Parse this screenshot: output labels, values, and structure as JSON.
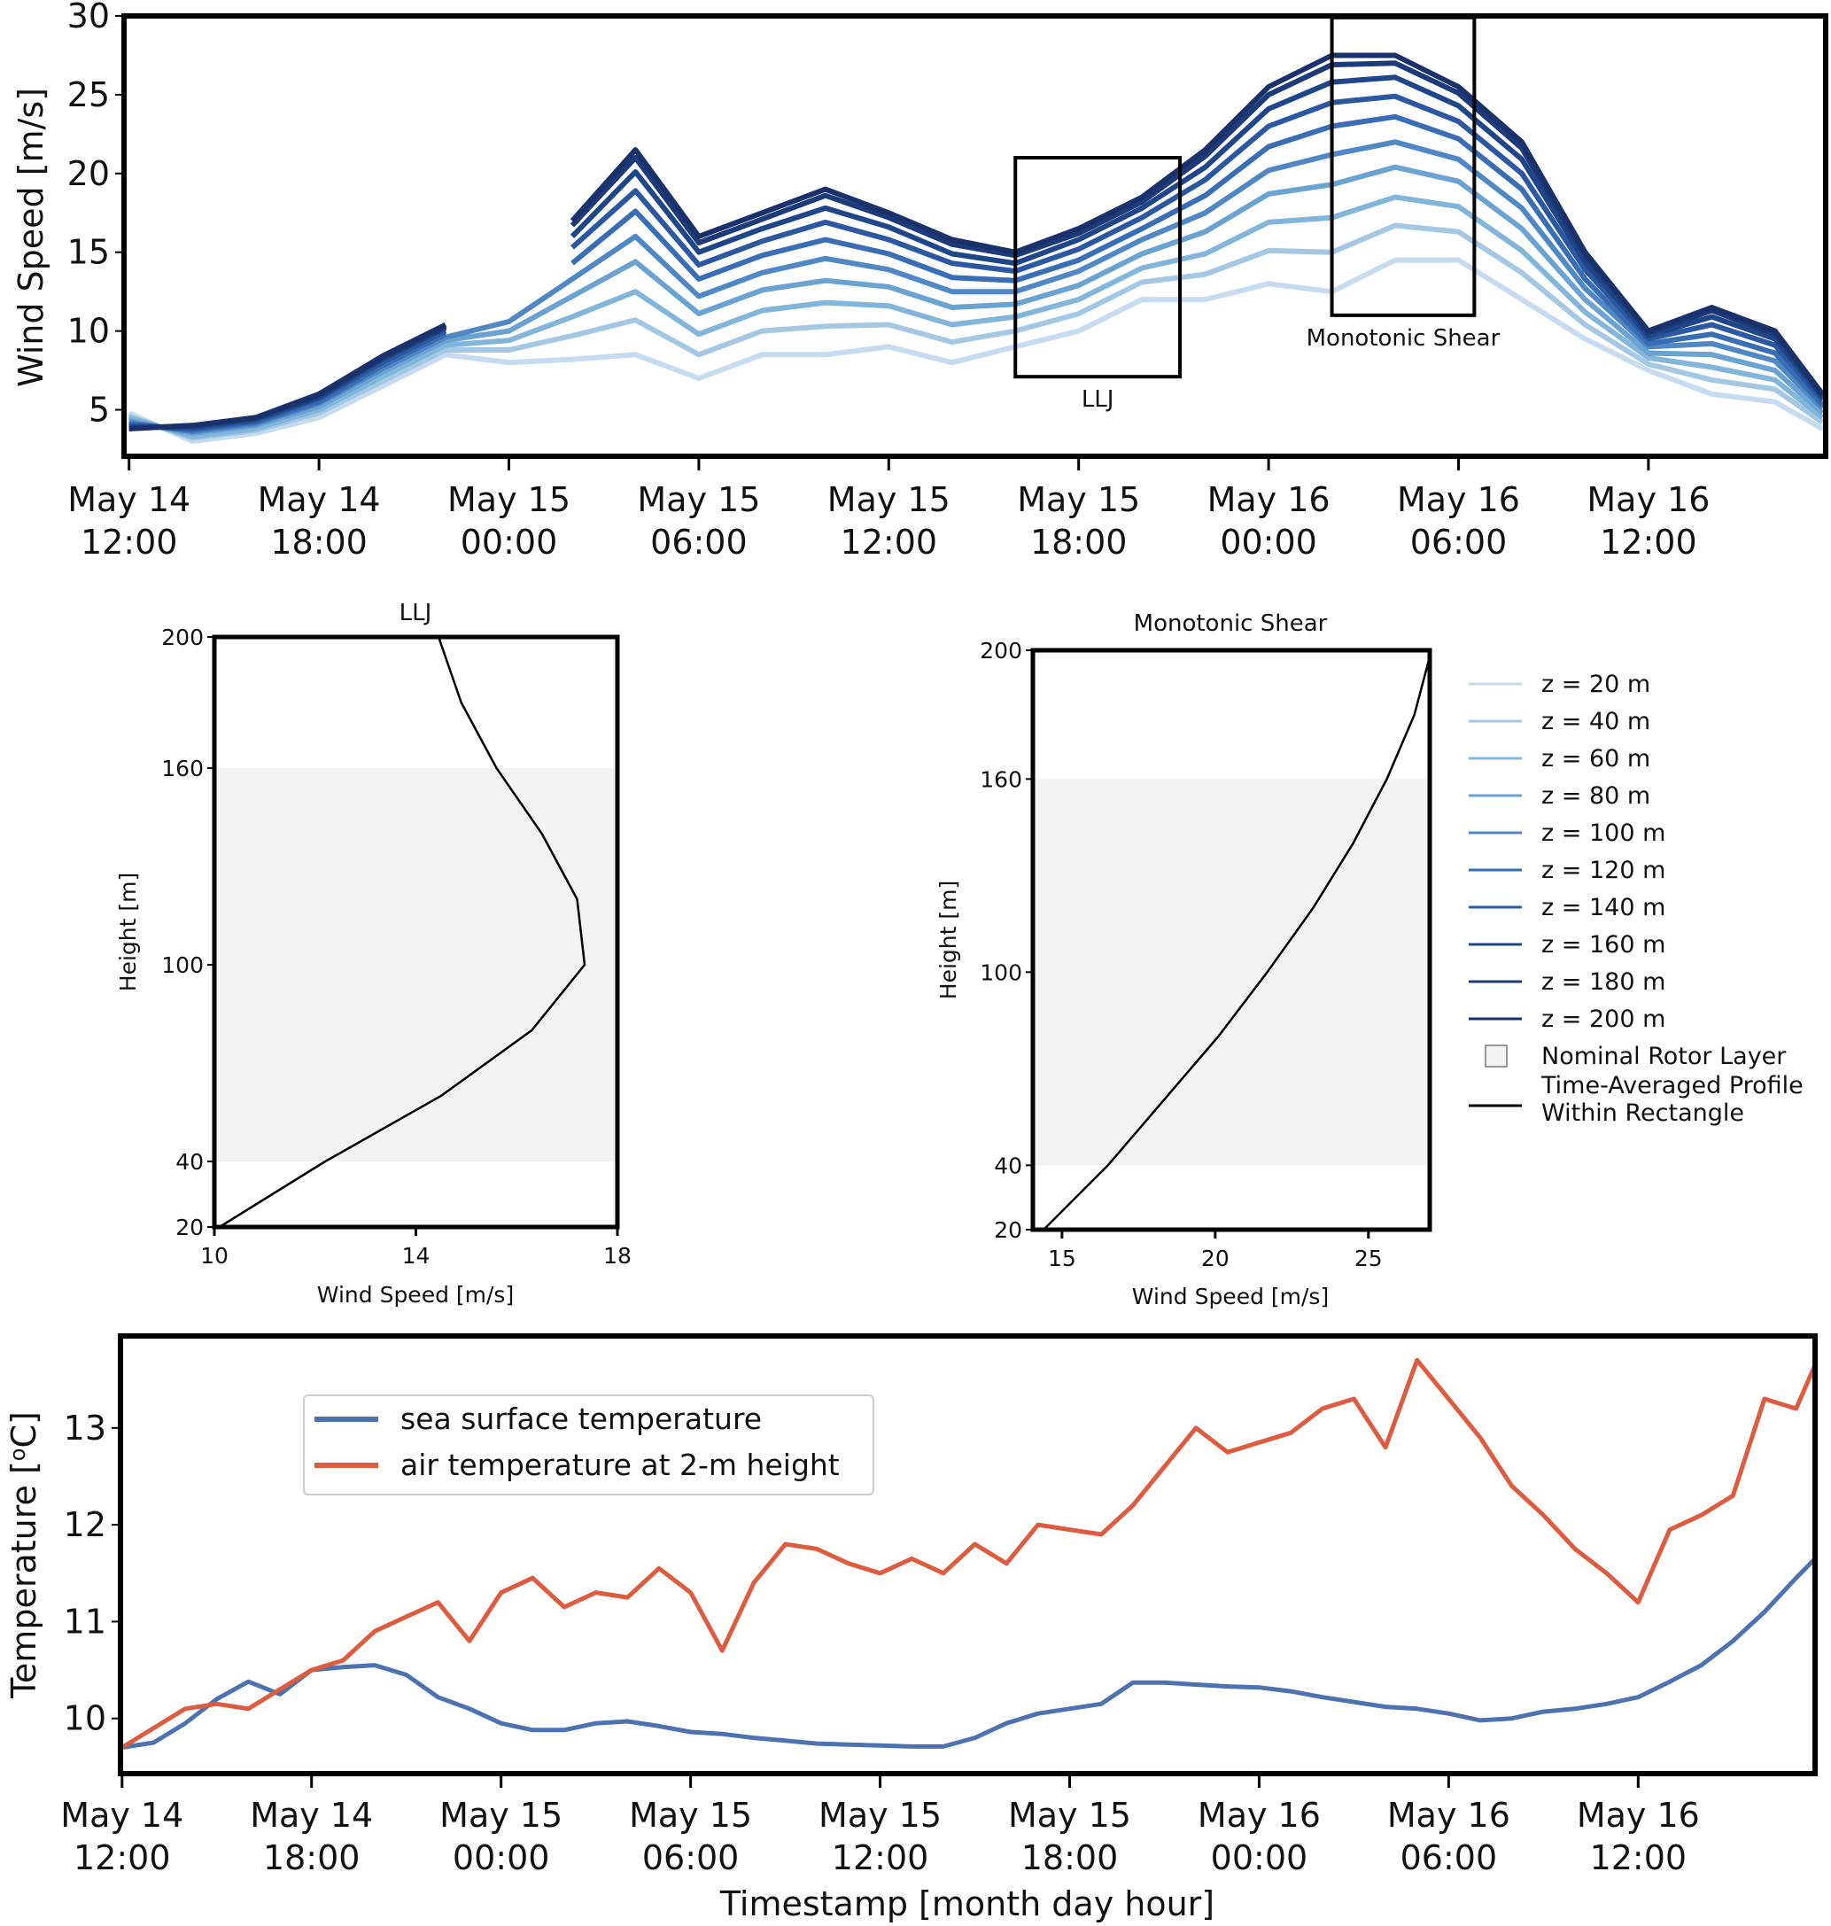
{
  "chart_data": [
    {
      "id": "wind_timeseries",
      "type": "line",
      "title": "",
      "xlabel": "",
      "ylabel": "Wind Speed [m/s]",
      "x_unit": "hours since May 14 12:00",
      "xlim": [
        -0.16,
        53.6
      ],
      "ylim": [
        2.05,
        30
      ],
      "yticks": [
        5,
        10,
        15,
        20,
        25,
        30
      ],
      "xticks": [
        {
          "hour": 0,
          "label": [
            "May 14",
            "12:00"
          ]
        },
        {
          "hour": 6,
          "label": [
            "May 14",
            "18:00"
          ]
        },
        {
          "hour": 12,
          "label": [
            "May 15",
            "00:00"
          ]
        },
        {
          "hour": 18,
          "label": [
            "May 15",
            "06:00"
          ]
        },
        {
          "hour": 24,
          "label": [
            "May 15",
            "12:00"
          ]
        },
        {
          "hour": 30,
          "label": [
            "May 15",
            "18:00"
          ]
        },
        {
          "hour": 36,
          "label": [
            "May 16",
            "00:00"
          ]
        },
        {
          "hour": 42,
          "label": [
            "May 16",
            "06:00"
          ]
        },
        {
          "hour": 48,
          "label": [
            "May 16",
            "12:00"
          ]
        }
      ],
      "grid": false,
      "x": [
        0,
        2,
        4,
        6,
        8,
        10,
        12,
        14,
        16,
        18,
        20,
        22,
        24,
        26,
        28,
        30,
        32,
        34,
        36,
        38,
        40,
        42,
        44,
        46,
        48,
        50,
        52,
        53.5
      ],
      "series": [
        {
          "name": "z = 20 m",
          "color": "#c6dbef",
          "values": [
            4.8,
            3.0,
            3.5,
            4.5,
            6.5,
            8.5,
            8.0,
            8.2,
            8.5,
            7.0,
            8.5,
            8.5,
            9.0,
            8.0,
            9.0,
            10.0,
            12.0,
            12.0,
            13.0,
            12.5,
            14.5,
            14.5,
            12.0,
            9.5,
            7.5,
            6.0,
            5.5,
            3.8
          ]
        },
        {
          "name": "z = 40 m",
          "color": "#a4c8e4",
          "values": [
            4.6,
            3.2,
            3.7,
            4.8,
            6.8,
            8.8,
            8.8,
            9.7,
            10.7,
            8.5,
            10.0,
            10.3,
            10.4,
            9.3,
            10.0,
            11.1,
            13.1,
            13.6,
            15.1,
            15.0,
            16.7,
            16.3,
            13.7,
            10.4,
            7.9,
            6.9,
            6.3,
            4.2
          ]
        },
        {
          "name": "z = 60 m",
          "color": "#82b5da",
          "values": [
            4.5,
            3.3,
            3.8,
            5.0,
            7.1,
            9.1,
            9.4,
            10.9,
            12.5,
            9.8,
            11.3,
            11.8,
            11.6,
            10.4,
            10.9,
            12.0,
            14.0,
            14.9,
            16.9,
            17.2,
            18.5,
            17.9,
            15.1,
            11.2,
            8.3,
            7.7,
            6.9,
            4.5
          ]
        },
        {
          "name": "z = 80 m",
          "color": "#6aa2d1",
          "values": [
            4.3,
            3.5,
            4.0,
            5.2,
            7.4,
            9.4,
            10.0,
            12.2,
            14.4,
            11.1,
            12.6,
            13.2,
            12.8,
            11.5,
            11.7,
            12.9,
            14.9,
            16.3,
            18.7,
            19.3,
            20.4,
            19.5,
            16.5,
            12.0,
            8.6,
            8.5,
            7.5,
            4.8
          ]
        },
        {
          "name": "z = 100 m",
          "color": "#4f88c4",
          "values": [
            4.2,
            3.6,
            4.1,
            5.4,
            7.6,
            9.6,
            10.6,
            13.3,
            16.0,
            12.2,
            13.7,
            14.6,
            13.9,
            12.5,
            12.5,
            13.8,
            15.8,
            17.5,
            20.2,
            21.2,
            22.0,
            20.9,
            17.8,
            12.7,
            9.0,
            9.2,
            8.1,
            5.1
          ]
        },
        {
          "name": "z = 120 m",
          "color": "#3a6eb4",
          "values": [
            4.1,
            3.7,
            4.2,
            5.5,
            7.8,
            9.8,
            null,
            14.3,
            17.6,
            13.3,
            14.8,
            15.8,
            14.9,
            13.4,
            13.2,
            14.5,
            16.5,
            18.6,
            21.7,
            23.0,
            23.6,
            22.2,
            19.0,
            13.3,
            9.2,
            9.8,
            8.6,
            5.3
          ]
        },
        {
          "name": "z = 140 m",
          "color": "#2b58a0",
          "values": [
            4.0,
            3.8,
            4.3,
            5.7,
            8.0,
            10.0,
            null,
            15.3,
            18.9,
            14.2,
            15.7,
            16.9,
            15.8,
            14.3,
            13.8,
            15.2,
            17.2,
            19.6,
            23.0,
            24.5,
            24.9,
            23.3,
            20.0,
            13.9,
            9.5,
            10.4,
            9.1,
            5.6
          ]
        },
        {
          "name": "z = 160 m",
          "color": "#1f4689",
          "values": [
            3.9,
            3.9,
            4.4,
            5.8,
            8.2,
            10.2,
            null,
            16.0,
            20.1,
            15.0,
            16.5,
            17.8,
            16.6,
            14.9,
            14.3,
            15.8,
            17.8,
            20.4,
            24.1,
            25.8,
            26.1,
            24.3,
            20.9,
            14.4,
            9.7,
            10.9,
            9.5,
            5.8
          ]
        },
        {
          "name": "z = 180 m",
          "color": "#1c3b78",
          "values": [
            3.8,
            4.0,
            4.5,
            5.9,
            8.3,
            10.3,
            null,
            16.7,
            21.0,
            15.6,
            17.1,
            18.6,
            17.2,
            15.5,
            14.8,
            16.2,
            18.2,
            21.1,
            25.0,
            26.9,
            27.0,
            25.1,
            21.6,
            14.8,
            9.9,
            11.3,
            9.8,
            5.9
          ]
        },
        {
          "name": "z = 200 m",
          "color": "#1a326b",
          "values": [
            3.8,
            4.0,
            4.5,
            6.0,
            8.4,
            10.4,
            null,
            17.0,
            21.5,
            16.0,
            17.5,
            19.0,
            17.5,
            15.8,
            15.0,
            16.5,
            18.5,
            21.5,
            25.5,
            27.5,
            27.5,
            25.5,
            22.0,
            15.0,
            10.0,
            11.5,
            10.0,
            6.0
          ]
        }
      ],
      "annotations": [
        {
          "label": "LLJ",
          "type": "rectangle",
          "x_range": [
            28.0,
            33.2
          ],
          "y_range": [
            7.1,
            21.0
          ],
          "label_position": "below"
        },
        {
          "label": "Monotonic Shear",
          "type": "rectangle",
          "x_range": [
            38.0,
            42.5
          ],
          "y_range": [
            11.0,
            29.9
          ],
          "label_position": "below"
        }
      ]
    },
    {
      "id": "llj_profile",
      "type": "line",
      "title": "LLJ",
      "xlabel": "Wind Speed [m/s]",
      "ylabel": "Height [m]",
      "xlim": [
        10,
        18
      ],
      "ylim": [
        20,
        200
      ],
      "xticks": [
        10,
        14,
        18
      ],
      "yticks": [
        20,
        40,
        100,
        160,
        200
      ],
      "shaded_band": {
        "label": "Nominal Rotor Layer",
        "y_range": [
          40,
          160
        ],
        "color": "#f2f2f2"
      },
      "series": [
        {
          "name": "Time-Averaged Profile Within Rectangle",
          "color": "#000000",
          "points": [
            [
              10.1,
              20
            ],
            [
              12.2,
              40
            ],
            [
              14.5,
              60
            ],
            [
              16.3,
              80
            ],
            [
              17.35,
              100
            ],
            [
              17.2,
              120
            ],
            [
              16.5,
              140
            ],
            [
              15.6,
              160
            ],
            [
              14.9,
              180
            ],
            [
              14.45,
              200
            ]
          ]
        }
      ]
    },
    {
      "id": "shear_profile",
      "type": "line",
      "title": "Monotonic Shear",
      "xlabel": "Wind Speed [m/s]",
      "ylabel": "Height [m]",
      "xlim": [
        14.05,
        27.0
      ],
      "ylim": [
        20,
        200
      ],
      "xticks": [
        15,
        20,
        25
      ],
      "yticks": [
        20,
        40,
        100,
        160,
        200
      ],
      "shaded_band": {
        "label": "Nominal Rotor Layer",
        "y_range": [
          40,
          160
        ],
        "color": "#f2f2f2"
      },
      "series": [
        {
          "name": "Time-Averaged Profile Within Rectangle",
          "color": "#000000",
          "points": [
            [
              14.4,
              20
            ],
            [
              16.5,
              40
            ],
            [
              18.3,
              60
            ],
            [
              20.1,
              80
            ],
            [
              21.7,
              100
            ],
            [
              23.2,
              120
            ],
            [
              24.5,
              140
            ],
            [
              25.6,
              160
            ],
            [
              26.5,
              180
            ],
            [
              27.0,
              198
            ]
          ]
        }
      ]
    },
    {
      "id": "temperature_timeseries",
      "type": "line",
      "title": "",
      "xlabel": "Timestamp [month day hour]",
      "ylabel": "Temperature [°C]",
      "x_unit": "hours since May 14 12:00",
      "xlim": [
        -0.05,
        53.6
      ],
      "ylim": [
        9.43,
        13.95
      ],
      "yticks": [
        10,
        11,
        12,
        13
      ],
      "xticks": [
        {
          "hour": 0,
          "label": [
            "May 14",
            "12:00"
          ]
        },
        {
          "hour": 6,
          "label": [
            "May 14",
            "18:00"
          ]
        },
        {
          "hour": 12,
          "label": [
            "May 15",
            "00:00"
          ]
        },
        {
          "hour": 18,
          "label": [
            "May 15",
            "06:00"
          ]
        },
        {
          "hour": 24,
          "label": [
            "May 15",
            "12:00"
          ]
        },
        {
          "hour": 30,
          "label": [
            "May 15",
            "18:00"
          ]
        },
        {
          "hour": 36,
          "label": [
            "May 16",
            "00:00"
          ]
        },
        {
          "hour": 42,
          "label": [
            "May 16",
            "06:00"
          ]
        },
        {
          "hour": 48,
          "label": [
            "May 16",
            "12:00"
          ]
        }
      ],
      "grid": false,
      "legend_position": "upper-left",
      "x": [
        0,
        1,
        2,
        3,
        4,
        5,
        6,
        7,
        8,
        9,
        10,
        11,
        12,
        13,
        14,
        15,
        16,
        17,
        18,
        19,
        20,
        21,
        22,
        23,
        24,
        25,
        26,
        27,
        28,
        29,
        30,
        31,
        32,
        33,
        34,
        35,
        36,
        37,
        38,
        39,
        40,
        41,
        42,
        43,
        44,
        45,
        46,
        47,
        48,
        49,
        50,
        51,
        52,
        53,
        53.6
      ],
      "series": [
        {
          "name": "sea surface temperature",
          "color": "#4c72b0",
          "values": [
            9.7,
            9.75,
            9.95,
            10.2,
            10.38,
            10.25,
            10.5,
            10.53,
            10.55,
            10.45,
            10.22,
            10.1,
            9.95,
            9.88,
            9.88,
            9.95,
            9.97,
            9.92,
            9.86,
            9.84,
            9.8,
            9.77,
            9.74,
            9.73,
            9.72,
            9.71,
            9.71,
            9.8,
            9.95,
            10.05,
            10.1,
            10.15,
            10.37,
            10.37,
            10.35,
            10.33,
            10.32,
            10.28,
            10.22,
            10.17,
            10.12,
            10.1,
            10.05,
            9.98,
            10.0,
            10.07,
            10.1,
            10.15,
            10.22,
            10.38,
            10.55,
            10.8,
            11.1,
            11.45,
            11.65
          ]
        },
        {
          "name": "air temperature at 2-m height",
          "color": "#dd5b3f",
          "values": [
            9.7,
            9.9,
            10.1,
            10.15,
            10.1,
            10.3,
            10.5,
            10.6,
            10.9,
            11.05,
            11.2,
            10.8,
            11.3,
            11.45,
            11.15,
            11.3,
            11.25,
            11.55,
            11.3,
            10.7,
            11.4,
            11.8,
            11.75,
            11.6,
            11.5,
            11.65,
            11.5,
            11.8,
            11.6,
            12.0,
            11.95,
            11.9,
            12.2,
            12.6,
            13.0,
            12.75,
            12.85,
            12.95,
            13.2,
            13.3,
            12.8,
            13.7,
            13.3,
            12.9,
            12.4,
            12.1,
            11.75,
            11.5,
            11.2,
            11.95,
            12.1,
            12.3,
            13.3,
            13.2,
            13.65
          ]
        }
      ]
    }
  ],
  "legend_profiles": {
    "items": [
      {
        "label": "z = 20 m",
        "color": "#c6dbef",
        "kind": "line"
      },
      {
        "label": "z = 40 m",
        "color": "#a4c8e4",
        "kind": "line"
      },
      {
        "label": "z = 60 m",
        "color": "#82b5da",
        "kind": "line"
      },
      {
        "label": "z = 80 m",
        "color": "#6aa2d1",
        "kind": "line"
      },
      {
        "label": "z = 100 m",
        "color": "#4f88c4",
        "kind": "line"
      },
      {
        "label": "z = 120 m",
        "color": "#3a6eb4",
        "kind": "line"
      },
      {
        "label": "z = 140 m",
        "color": "#2b58a0",
        "kind": "line"
      },
      {
        "label": "z = 160 m",
        "color": "#1f4689",
        "kind": "line"
      },
      {
        "label": "z = 180 m",
        "color": "#1c3b78",
        "kind": "line"
      },
      {
        "label": "z = 200 m",
        "color": "#1a326b",
        "kind": "line"
      },
      {
        "label": "Nominal Rotor Layer",
        "color": "#f2f2f2",
        "kind": "patch"
      },
      {
        "label": "Time-Averaged Profile\nWithin Rectangle",
        "color": "#000000",
        "kind": "line"
      }
    ]
  },
  "legend_temperature": {
    "items": [
      {
        "label": "sea surface temperature",
        "color": "#4c72b0"
      },
      {
        "label": "air temperature at 2-m height",
        "color": "#dd5b3f"
      }
    ]
  }
}
